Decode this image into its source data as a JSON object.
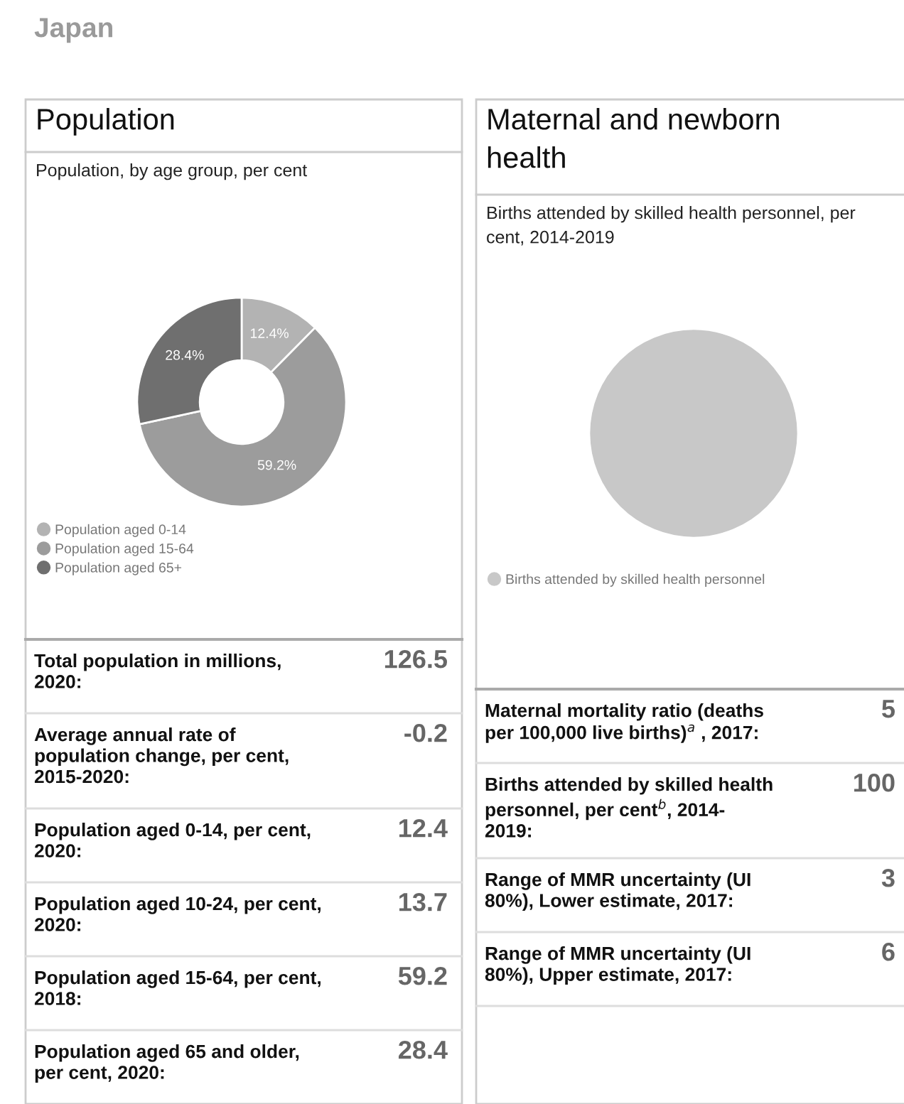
{
  "chart_data": [
    {
      "type": "donut",
      "title": "Population",
      "subtitle": "Population, by age group, per cent",
      "annotations": [
        "Japan"
      ],
      "categories": [
        "Population aged 0-14",
        "Population aged 15-64",
        "Population aged 65+"
      ],
      "values": [
        12.4,
        59.2,
        28.4
      ],
      "colors": [
        "#b3b3b3",
        "#9c9c9c",
        "#6f6f6f"
      ],
      "value_labels": [
        "12.4%",
        "59.2%",
        "28.4%"
      ],
      "legend": "bottom left"
    },
    {
      "type": "other",
      "annotations": [
        "Total population in millions,\n2020:",
        "126.5",
        "Average annual rate of\npopulation change, per cent,\n2015-2020:",
        "-0.2",
        "Population aged 0-14, per cent,\n2020:",
        "12.4",
        "Population aged 10-24, per cent,\n2020:",
        "13.7",
        "Population aged 15-64, per cent,\n2018:",
        "59.2",
        "Population aged 65 and older,\nper cent, 2020:",
        "28.4"
      ]
    },
    {
      "type": "pie",
      "title": "Maternal and newborn\nhealth",
      "subtitle": "Births attended by skilled health personnel, per\ncent, 2014-2019",
      "categories": [
        "Births attended by skilled health personnel"
      ],
      "values": [
        100
      ],
      "colors": [
        "#c8c8c8"
      ],
      "legend": "bottom left"
    },
    {
      "type": "other",
      "annotations": [
        "Maternal mortality ratio (deaths\nper 100,000 live births)$^{a}$ , 2017:",
        "5",
        "Births attended by skilled health\npersonnel, per cent$^{b}$, 2014-\n2019:",
        "100",
        "Range of MMR uncertainty (UI\n80%), Lower estimate, 2017:",
        "3",
        "Range of MMR uncertainty (UI\n80%), Upper estimate, 2017:",
        "6"
      ]
    }
  ]
}
